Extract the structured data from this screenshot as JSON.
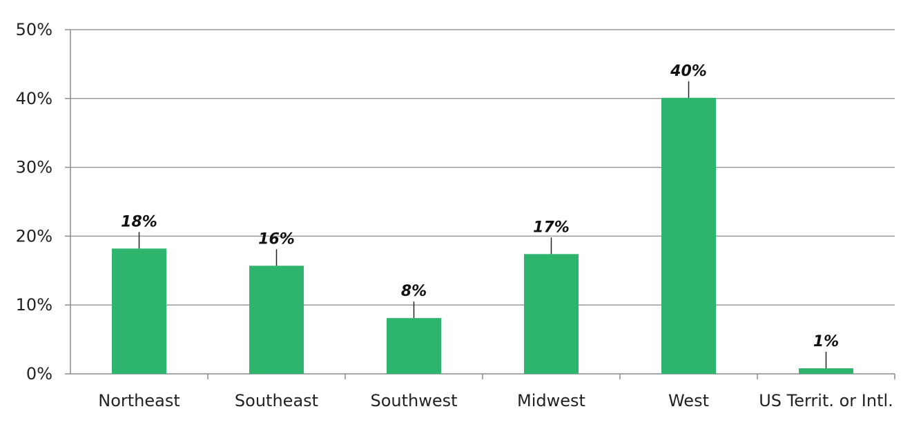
{
  "chart_data": {
    "type": "bar",
    "categories": [
      "Northeast",
      "Southeast",
      "Southwest",
      "Midwest",
      "West",
      "US Territ. or Intl."
    ],
    "values": [
      18.2,
      15.7,
      8.1,
      17.4,
      40.1,
      0.8
    ],
    "data_labels": [
      "18%",
      "16%",
      "8%",
      "17%",
      "40%",
      "1%"
    ],
    "ylim": [
      0,
      50
    ],
    "yticks": [
      0,
      10,
      20,
      30,
      40,
      50
    ],
    "ytick_labels": [
      "0%",
      "10%",
      "20%",
      "30%",
      "40%",
      "50%"
    ],
    "grid": true,
    "title": "",
    "xlabel": "",
    "ylabel": "",
    "colors": {
      "bar": "#2db56e",
      "grid": "#9a9a9a",
      "axis": "#8a8a8a",
      "leader": "#222222"
    }
  }
}
